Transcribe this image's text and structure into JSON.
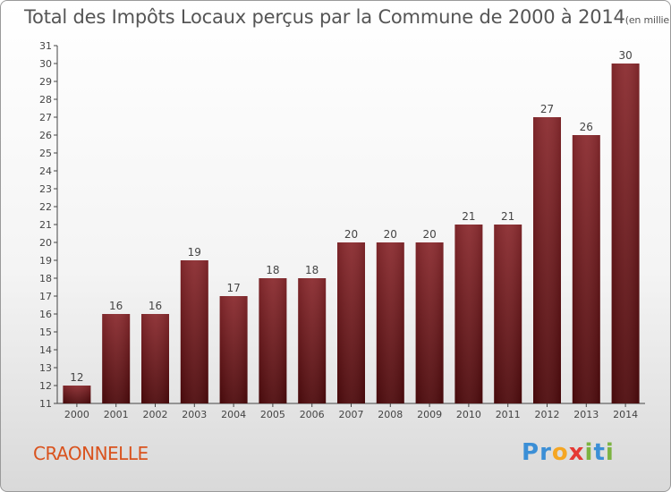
{
  "title": "Total des Impôts Locaux perçus par la Commune de 2000 à 2014",
  "title_unit": "(en milliers d'€)",
  "commune": "CRAONNELLE",
  "logo": {
    "letters": [
      "P",
      "r",
      "o",
      "x",
      "i",
      "t",
      "i"
    ],
    "colors": [
      "#3b8fd6",
      "#3b8fd6",
      "#f5a623",
      "#e53935",
      "#7cb342",
      "#3b8fd6",
      "#7cb342"
    ]
  },
  "chart_data": {
    "type": "bar",
    "categories": [
      "2000",
      "2001",
      "2002",
      "2003",
      "2004",
      "2005",
      "2006",
      "2007",
      "2008",
      "2009",
      "2010",
      "2011",
      "2012",
      "2013",
      "2014"
    ],
    "values": [
      12,
      16,
      16,
      19,
      17,
      18,
      18,
      20,
      20,
      20,
      21,
      21,
      27,
      26,
      30
    ],
    "ylim": [
      11,
      31
    ],
    "yticks": [
      11,
      12,
      13,
      14,
      15,
      16,
      17,
      18,
      19,
      20,
      21,
      22,
      23,
      24,
      25,
      26,
      27,
      28,
      29,
      30,
      31
    ],
    "grid": false,
    "bar_color": "#7a1a1e",
    "xlabel": "",
    "ylabel": ""
  }
}
